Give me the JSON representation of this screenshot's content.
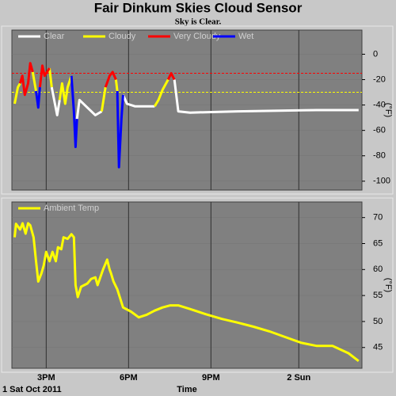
{
  "header": {
    "title": "Fair Dinkum Skies Cloud Sensor",
    "subtitle": "Sky is Clear."
  },
  "chart_data": [
    {
      "type": "line",
      "x": [
        13.85,
        13.97,
        14.05,
        14.13,
        14.22,
        14.34,
        14.42,
        14.51,
        14.63,
        14.71,
        14.77,
        14.86,
        14.94,
        15.12,
        15.2,
        15.29,
        15.4,
        15.49,
        15.58,
        15.69,
        15.78,
        15.92,
        16.01,
        16.07,
        16.12,
        16.21,
        16.5,
        16.79,
        17.02,
        17.16,
        17.31,
        17.42,
        17.54,
        17.59,
        17.65,
        17.74,
        17.8,
        17.94,
        18.23,
        18.95,
        19.09,
        19.24,
        19.44,
        19.55,
        19.67,
        19.81,
        20.24,
        21.97,
        24.86,
        26.38
      ],
      "series": [
        {
          "name": "Clear",
          "color": "#ffffff",
          "values": [
            null,
            null,
            null,
            null,
            null,
            null,
            null,
            null,
            null,
            null,
            null,
            null,
            null,
            null,
            -26,
            -36,
            -48,
            -36,
            null,
            null,
            null,
            null,
            null,
            null,
            -51,
            -36,
            -42,
            -48,
            -45,
            null,
            null,
            null,
            null,
            null,
            null,
            null,
            -32,
            -39,
            -41,
            -41,
            null,
            null,
            null,
            null,
            -20,
            -45,
            -46,
            -45,
            -44,
            -44
          ]
        },
        {
          "name": "Cloudy",
          "color": "#ffff00",
          "values": [
            -39,
            -26,
            -23,
            null,
            null,
            null,
            null,
            -14,
            -29,
            null,
            null,
            null,
            null,
            -11,
            -26,
            null,
            null,
            -36,
            -23,
            -39,
            -26,
            -17,
            null,
            null,
            null,
            null,
            null,
            null,
            -45,
            -26,
            null,
            null,
            -20,
            -29,
            null,
            null,
            null,
            null,
            null,
            -41,
            -36,
            -28,
            -20,
            null,
            null,
            null,
            null,
            null,
            null,
            null
          ]
        },
        {
          "name": "Very Cloudy",
          "color": "#ff0000",
          "values": [
            null,
            null,
            -23,
            -17,
            -32,
            -23,
            -7,
            -14,
            null,
            null,
            -26,
            -9,
            -17,
            -11,
            null,
            null,
            null,
            null,
            null,
            null,
            null,
            null,
            null,
            null,
            null,
            null,
            null,
            null,
            null,
            -26,
            -17,
            -14,
            -20,
            null,
            null,
            null,
            null,
            null,
            null,
            null,
            null,
            null,
            -20,
            -15,
            -20,
            null,
            null,
            null,
            null,
            null
          ]
        },
        {
          "name": "Wet",
          "color": "#0000ff",
          "values": [
            null,
            null,
            null,
            null,
            null,
            null,
            null,
            null,
            -29,
            -42,
            -26,
            null,
            null,
            null,
            null,
            null,
            null,
            null,
            null,
            null,
            null,
            -17,
            -45,
            -73,
            -51,
            null,
            null,
            null,
            null,
            null,
            null,
            null,
            null,
            -29,
            -89,
            -51,
            -32,
            null,
            null,
            null,
            null,
            null,
            null,
            null,
            null,
            null,
            null,
            null,
            null,
            null
          ]
        }
      ],
      "thresholds": [
        {
          "value": -15,
          "color": "#ff0000"
        },
        {
          "value": -30,
          "color": "#ffff00"
        }
      ],
      "xlim": [
        13.75,
        26.5
      ],
      "ylim": [
        -107,
        19
      ],
      "yticks": [
        0,
        -20,
        -40,
        -60,
        -80,
        -100
      ],
      "ylabel": "(°F)",
      "grid": true,
      "legend": "top-left"
    },
    {
      "type": "line",
      "x": [
        13.85,
        13.9,
        14.05,
        14.14,
        14.25,
        14.34,
        14.42,
        14.54,
        14.63,
        14.71,
        14.83,
        14.91,
        15.0,
        15.12,
        15.23,
        15.35,
        15.43,
        15.55,
        15.63,
        15.78,
        15.92,
        16.01,
        16.07,
        16.15,
        16.27,
        16.5,
        16.64,
        16.79,
        16.87,
        17.07,
        17.22,
        17.31,
        17.36,
        17.45,
        17.59,
        17.8,
        18.09,
        18.37,
        18.66,
        18.95,
        19.24,
        19.52,
        19.81,
        20.24,
        20.82,
        21.4,
        21.97,
        22.55,
        23.13,
        23.71,
        24.29,
        24.86,
        25.43,
        26.01,
        26.38
      ],
      "series": [
        {
          "name": "Ambient Temp",
          "color": "#ffff00",
          "values": [
            66.2,
            68.8,
            67.7,
            68.9,
            66.9,
            68.9,
            68.5,
            66.2,
            61.6,
            57.7,
            59.3,
            60.8,
            63.4,
            61.6,
            63.4,
            61.6,
            64.3,
            63.9,
            66.2,
            65.9,
            66.8,
            66.2,
            57.0,
            54.7,
            56.7,
            57.3,
            58.2,
            58.5,
            57.0,
            60.0,
            61.9,
            60.0,
            59.3,
            57.7,
            56.2,
            52.7,
            51.9,
            50.8,
            51.3,
            52.1,
            52.7,
            53.1,
            53.1,
            52.4,
            51.4,
            50.5,
            49.8,
            49.0,
            48.1,
            47.0,
            45.9,
            45.3,
            45.3,
            43.9,
            42.4
          ]
        }
      ],
      "xlim": [
        13.75,
        26.5
      ],
      "ylim": [
        41,
        73
      ],
      "yticks": [
        45,
        50,
        55,
        60,
        65,
        70
      ],
      "xticks": [
        {
          "value": 15,
          "label": "3PM"
        },
        {
          "value": 18,
          "label": "6PM"
        },
        {
          "value": 21,
          "label": "9PM"
        },
        {
          "value": 24.2,
          "label": "2 Sun"
        }
      ],
      "ylabel": "(°F)",
      "xlabel": "Time",
      "annotations": [
        "1 Sat Oct 2011"
      ],
      "grid": true,
      "legend": "top-left"
    }
  ]
}
